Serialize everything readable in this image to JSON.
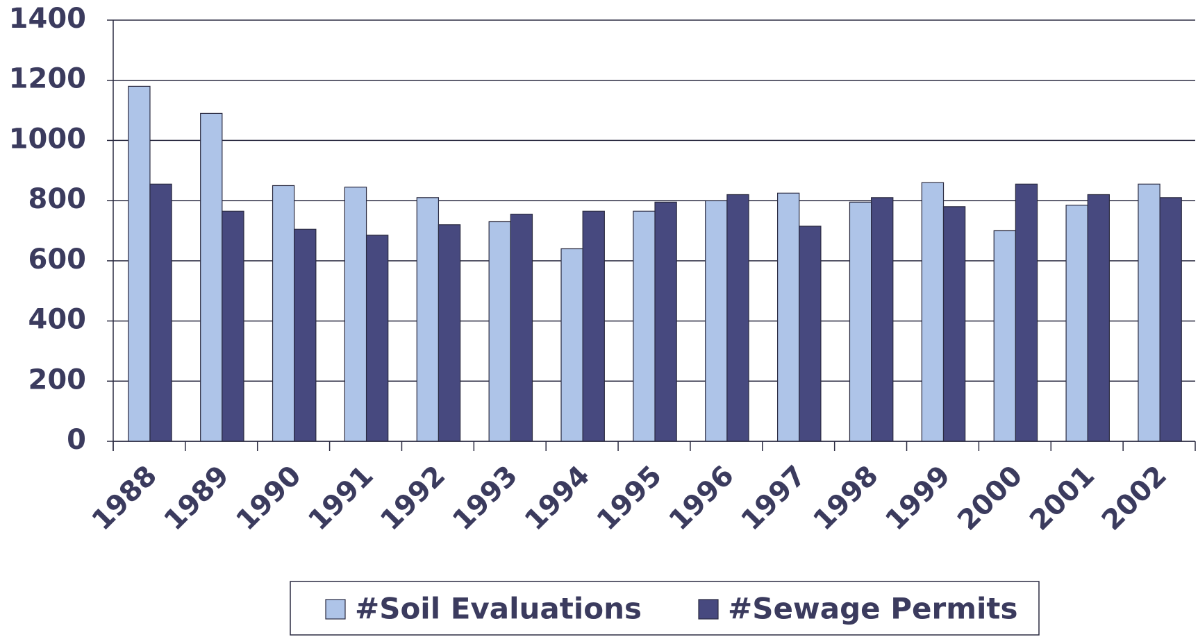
{
  "chart_data": {
    "type": "bar",
    "categories": [
      "1988",
      "1989",
      "1990",
      "1991",
      "1992",
      "1993",
      "1994",
      "1995",
      "1996",
      "1997",
      "1998",
      "1999",
      "2000",
      "2001",
      "2002"
    ],
    "series": [
      {
        "name": "#Soil Evaluations",
        "color": "#aec4e8",
        "values": [
          1180,
          1090,
          850,
          845,
          810,
          730,
          640,
          765,
          800,
          825,
          795,
          860,
          700,
          785,
          855
        ]
      },
      {
        "name": "#Sewage Permits",
        "color": "#47497f",
        "values": [
          855,
          765,
          705,
          685,
          720,
          755,
          765,
          795,
          820,
          715,
          810,
          780,
          855,
          820,
          810
        ]
      }
    ],
    "ylim": [
      0,
      1400
    ],
    "yticks": [
      0,
      200,
      400,
      600,
      800,
      1000,
      1200,
      1400
    ],
    "grid": true,
    "legend": "bottom"
  }
}
